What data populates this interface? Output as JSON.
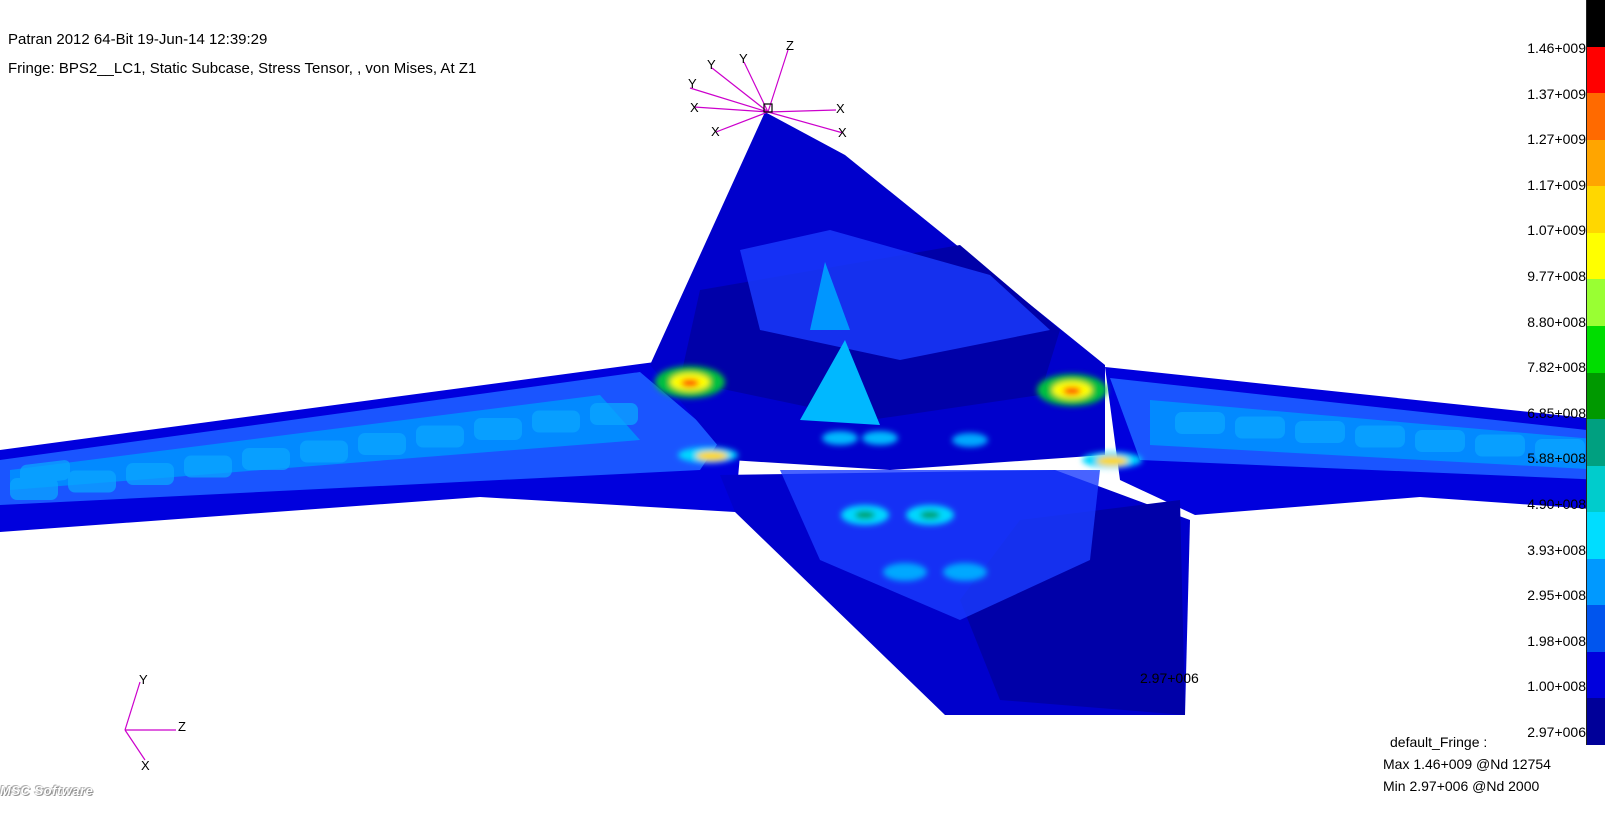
{
  "header": {
    "line1": "Patran 2012 64-Bit 19-Jun-14 12:39:29",
    "line2": "Fringe: BPS2__LC1, Static Subcase, Stress Tensor, , von Mises, At Z1"
  },
  "triad_top": {
    "labels": [
      "Z",
      "Y",
      "Y",
      "Y",
      "X",
      "X",
      "X",
      "X"
    ],
    "color": "#cc00cc"
  },
  "triad_bottom": {
    "y_label": "Y",
    "z_label": "Z",
    "x_label": "X",
    "color": "#cc00cc"
  },
  "legend": {
    "labels": [
      "1.46+009",
      "1.37+009",
      "1.27+009",
      "1.17+009",
      "1.07+009",
      "9.77+008",
      "8.80+008",
      "7.82+008",
      "6.85+008",
      "5.88+008",
      "4.90+008",
      "3.93+008",
      "2.95+008",
      "1.98+008",
      "1.00+008",
      "2.97+006"
    ],
    "colors": [
      "#000000",
      "#ff0000",
      "#ff6a00",
      "#ffa500",
      "#ffd700",
      "#ffff00",
      "#99ff33",
      "#00dd00",
      "#009900",
      "#00a080",
      "#00cccc",
      "#00ddff",
      "#0099ff",
      "#0055ee",
      "#0000dd",
      "#000099"
    ]
  },
  "fringe_info": {
    "name": "default_Fringe :",
    "max": "Max 1.46+009 @Nd 12754",
    "min": "Min 2.97+006 @Nd 2000"
  },
  "node_annotation": "2.97+006",
  "logo_text": "MSC Software",
  "colors": {
    "base_blue": "#0000cc",
    "dark_blue": "#0000a8",
    "mid_blue": "#1a3cff",
    "light_blue": "#0096ff",
    "cyan": "#00d8ff",
    "green": "#00c040",
    "yellow": "#ffff00",
    "orange": "#ff8800",
    "red": "#ff0000"
  }
}
